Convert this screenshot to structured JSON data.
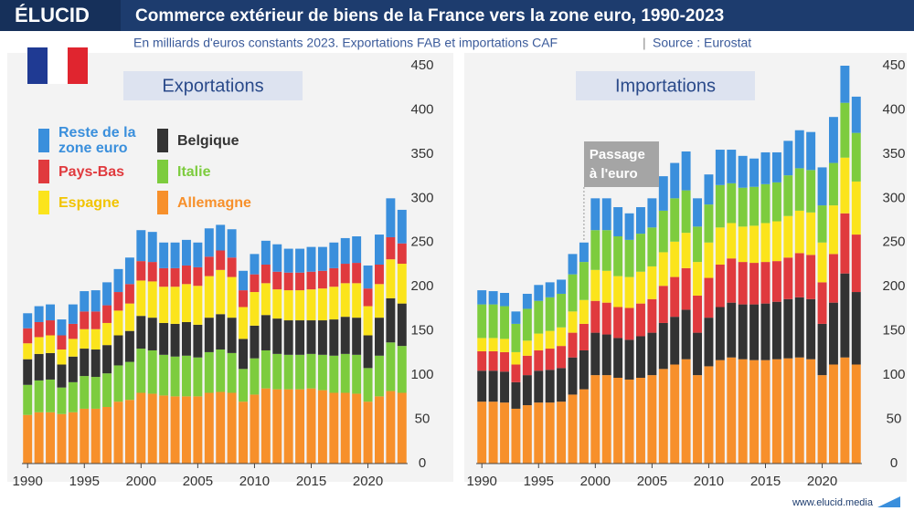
{
  "header": {
    "logo": "ÉLUCID",
    "title": "Commerce extérieur de biens de la France vers la zone euro, 1990-2023",
    "subtitle": "En milliards d'euros constants 2023. Exportations FAB et importations CAF",
    "source": "Source : Eurostat"
  },
  "footer": "www.elucid.media",
  "chart_data": [
    {
      "type": "bar",
      "stacked": true,
      "title": "Exportations",
      "x": [
        1990,
        1991,
        1992,
        1993,
        1994,
        1995,
        1996,
        1997,
        1998,
        1999,
        2000,
        2001,
        2002,
        2003,
        2004,
        2005,
        2006,
        2007,
        2008,
        2009,
        2010,
        2011,
        2012,
        2013,
        2014,
        2015,
        2016,
        2017,
        2018,
        2019,
        2020,
        2021,
        2022,
        2023
      ],
      "xlim": [
        1989.5,
        2023.5
      ],
      "xticks": [
        1990,
        1995,
        2000,
        2005,
        2010,
        2015,
        2020
      ],
      "ylim": [
        0,
        450
      ],
      "yticks": [
        0,
        50,
        100,
        150,
        200,
        250,
        300,
        350,
        400,
        450
      ],
      "grid": false,
      "series": [
        {
          "name": "Allemagne",
          "color": "#f7902b",
          "values": [
            55,
            58,
            58,
            56,
            58,
            62,
            62,
            64,
            70,
            72,
            80,
            79,
            77,
            76,
            76,
            76,
            80,
            81,
            80,
            70,
            78,
            85,
            84,
            84,
            84,
            85,
            83,
            80,
            80,
            79,
            70,
            76,
            82,
            80
          ]
        },
        {
          "name": "Italie",
          "color": "#7dcc3e",
          "values": [
            34,
            36,
            37,
            30,
            34,
            37,
            36,
            38,
            41,
            43,
            50,
            49,
            46,
            45,
            46,
            44,
            46,
            48,
            45,
            37,
            41,
            43,
            40,
            39,
            39,
            39,
            40,
            42,
            44,
            44,
            38,
            46,
            55,
            53
          ]
        },
        {
          "name": "Belgique",
          "color": "#333333",
          "values": [
            29,
            30,
            30,
            26,
            29,
            31,
            31,
            32,
            34,
            35,
            37,
            37,
            36,
            37,
            38,
            37,
            39,
            40,
            40,
            34,
            37,
            40,
            40,
            39,
            39,
            38,
            39,
            41,
            42,
            42,
            37,
            43,
            50,
            48
          ]
        },
        {
          "name": "Espagne",
          "color": "#fbe41c",
          "values": [
            18,
            19,
            20,
            17,
            20,
            22,
            23,
            25,
            28,
            31,
            40,
            41,
            41,
            42,
            43,
            44,
            47,
            50,
            46,
            36,
            38,
            36,
            33,
            34,
            34,
            35,
            36,
            37,
            38,
            39,
            33,
            38,
            44,
            45
          ]
        },
        {
          "name": "Pays-Bas",
          "color": "#e03a3e",
          "values": [
            17,
            17,
            17,
            16,
            17,
            20,
            20,
            20,
            21,
            22,
            22,
            22,
            21,
            21,
            21,
            21,
            22,
            22,
            22,
            19,
            20,
            21,
            20,
            20,
            20,
            20,
            20,
            21,
            22,
            23,
            20,
            22,
            25,
            23
          ]
        },
        {
          "name": "Reste de la zone euro",
          "color": "#3a8fdc",
          "values": [
            17,
            18,
            18,
            18,
            22,
            23,
            24,
            26,
            26,
            30,
            35,
            34,
            29,
            29,
            29,
            28,
            32,
            29,
            32,
            22,
            23,
            27,
            31,
            27,
            27,
            28,
            27,
            29,
            29,
            30,
            26,
            34,
            44,
            38
          ]
        }
      ]
    },
    {
      "type": "bar",
      "stacked": true,
      "title": "Importations",
      "x": [
        1990,
        1991,
        1992,
        1993,
        1994,
        1995,
        1996,
        1997,
        1998,
        1999,
        2000,
        2001,
        2002,
        2003,
        2004,
        2005,
        2006,
        2007,
        2008,
        2009,
        2010,
        2011,
        2012,
        2013,
        2014,
        2015,
        2016,
        2017,
        2018,
        2019,
        2020,
        2021,
        2022,
        2023
      ],
      "xlim": [
        1989.5,
        2023.5
      ],
      "xticks": [
        1990,
        1995,
        2000,
        2005,
        2010,
        2015,
        2020
      ],
      "ylim": [
        0,
        450
      ],
      "yticks": [
        0,
        50,
        100,
        150,
        200,
        250,
        300,
        350,
        400,
        450
      ],
      "grid": false,
      "annotation": {
        "text": "Passage à l'euro",
        "x": 1999
      },
      "series": [
        {
          "name": "Allemagne",
          "color": "#f7902b",
          "values": [
            70,
            70,
            69,
            62,
            66,
            69,
            69,
            70,
            78,
            84,
            100,
            100,
            97,
            95,
            97,
            100,
            107,
            112,
            118,
            100,
            110,
            117,
            120,
            118,
            117,
            117,
            118,
            119,
            120,
            118,
            100,
            112,
            120,
            112
          ]
        },
        {
          "name": "Belgique",
          "color": "#333333",
          "values": [
            35,
            35,
            35,
            30,
            34,
            36,
            37,
            38,
            42,
            44,
            48,
            46,
            45,
            45,
            47,
            48,
            52,
            54,
            56,
            48,
            55,
            60,
            62,
            62,
            63,
            64,
            65,
            67,
            68,
            68,
            58,
            70,
            95,
            82
          ]
        },
        {
          "name": "Pays-Bas",
          "color": "#e03a3e",
          "values": [
            22,
            22,
            22,
            20,
            22,
            23,
            24,
            25,
            28,
            30,
            36,
            36,
            35,
            36,
            37,
            38,
            42,
            45,
            47,
            42,
            45,
            48,
            50,
            48,
            47,
            47,
            46,
            47,
            50,
            50,
            47,
            55,
            68,
            65
          ]
        },
        {
          "name": "Espagne",
          "color": "#fbe41c",
          "values": [
            15,
            15,
            15,
            14,
            17,
            19,
            20,
            21,
            24,
            27,
            35,
            36,
            35,
            35,
            36,
            37,
            38,
            40,
            40,
            38,
            40,
            42,
            40,
            40,
            42,
            44,
            45,
            47,
            48,
            48,
            45,
            55,
            63,
            60
          ]
        },
        {
          "name": "Italie",
          "color": "#7dcc3e",
          "values": [
            38,
            38,
            37,
            32,
            36,
            37,
            38,
            38,
            42,
            43,
            45,
            46,
            45,
            42,
            43,
            44,
            47,
            49,
            48,
            40,
            43,
            48,
            45,
            44,
            44,
            44,
            44,
            46,
            48,
            48,
            42,
            48,
            62,
            55
          ]
        },
        {
          "name": "Reste de la zone euro",
          "color": "#3a8fdc",
          "values": [
            16,
            15,
            15,
            14,
            17,
            18,
            17,
            16,
            23,
            22,
            36,
            36,
            33,
            30,
            30,
            33,
            39,
            40,
            44,
            32,
            34,
            40,
            38,
            36,
            32,
            36,
            34,
            39,
            43,
            43,
            43,
            52,
            42,
            41
          ]
        }
      ]
    }
  ]
}
